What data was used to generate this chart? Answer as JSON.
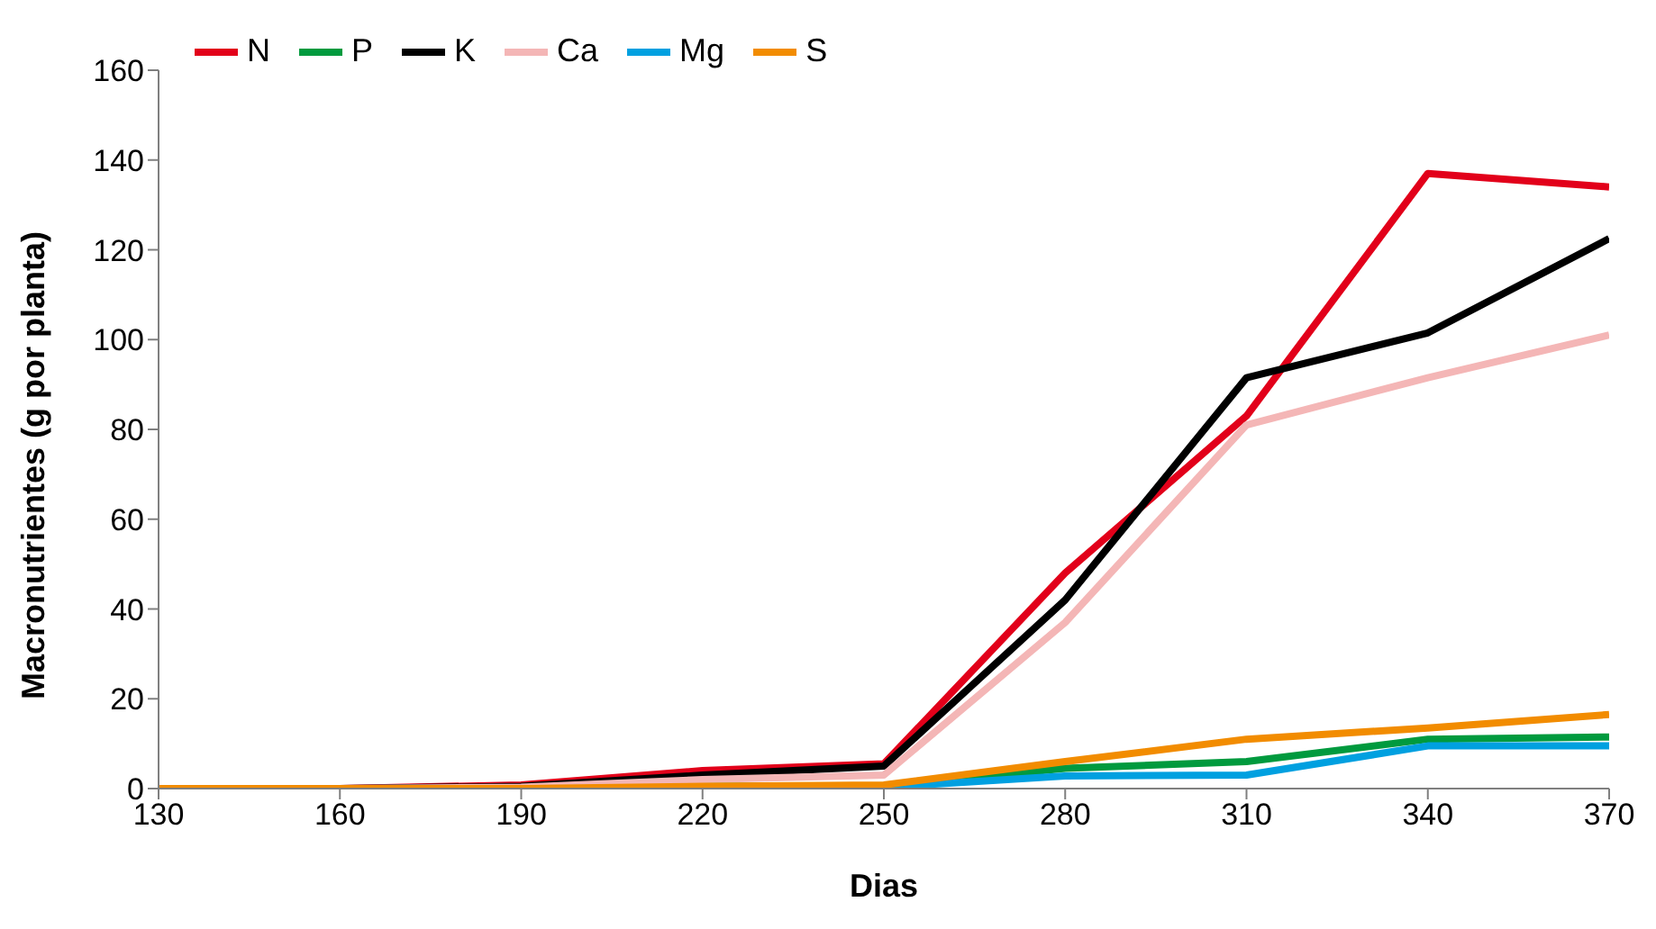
{
  "chart_data": {
    "type": "line",
    "xlabel": "Dias",
    "ylabel": "Macronutrientes (g por planta)",
    "x": [
      130,
      160,
      190,
      220,
      250,
      280,
      310,
      340,
      370
    ],
    "series": [
      {
        "name": "N",
        "color": "#e2001a",
        "values": [
          0,
          0,
          0.8,
          4,
          5.5,
          48,
          83,
          137,
          134
        ]
      },
      {
        "name": "P",
        "color": "#009a3e",
        "values": [
          null,
          null,
          null,
          0.5,
          0.5,
          4.5,
          6,
          11,
          11.5
        ]
      },
      {
        "name": "K",
        "color": "#000000",
        "values": [
          0,
          0,
          0.5,
          3,
          5,
          42,
          91.5,
          101.5,
          122.5
        ]
      },
      {
        "name": "Ca",
        "color": "#f4b6b6",
        "values": [
          0,
          0,
          0.3,
          2,
          3,
          37,
          81,
          91.5,
          101
        ]
      },
      {
        "name": "Mg",
        "color": "#00a0e0",
        "values": [
          null,
          null,
          null,
          0.3,
          0.3,
          2.8,
          3,
          9.5,
          9.5
        ]
      },
      {
        "name": "S",
        "color": "#f28c00",
        "values": [
          0,
          0,
          0,
          0.5,
          0.8,
          6,
          11,
          13.5,
          16.5
        ]
      }
    ],
    "xlim": [
      130,
      370
    ],
    "xticks": [
      130,
      160,
      190,
      220,
      250,
      280,
      310,
      340,
      370
    ],
    "ylim": [
      0,
      160
    ],
    "yticks": [
      0,
      20,
      40,
      60,
      80,
      100,
      120,
      140,
      160
    ],
    "grid": false,
    "legend": "top left",
    "marker": "none",
    "line_style": "solid"
  }
}
